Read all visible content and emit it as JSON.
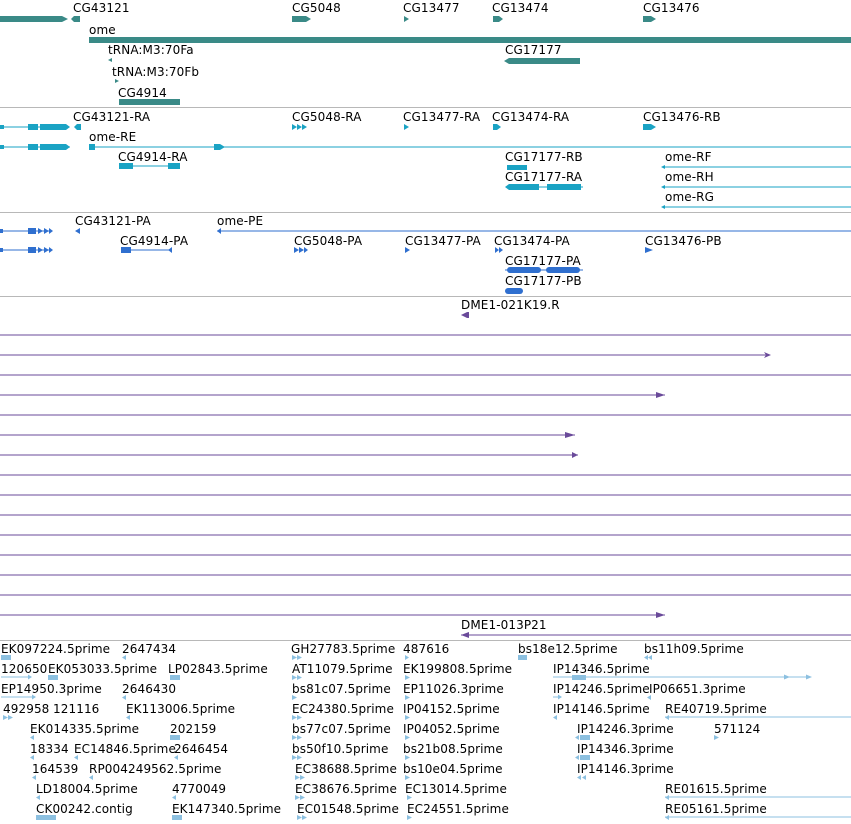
{
  "colors": {
    "gene": "#3a8a87",
    "transcript": "#1aa3c4",
    "protein": "#2f6fcf",
    "clone": "#6a4a9a",
    "est": "#8cc0e0"
  },
  "tracks": {
    "genes": {
      "labels": [
        "CG43121",
        "CG5048",
        "CG13477",
        "CG13474",
        "CG13476",
        "ome",
        "tRNA:M3:70Fa",
        "CG17177",
        "tRNA:M3:70Fb",
        "CG4914"
      ]
    },
    "transcripts": {
      "labels": [
        "CG43121-RA",
        "CG5048-RA",
        "CG13477-RA",
        "CG13474-RA",
        "CG13476-RB",
        "ome-RE",
        "CG4914-RA",
        "CG17177-RB",
        "ome-RF",
        "CG17177-RA",
        "ome-RH",
        "ome-RG"
      ]
    },
    "proteins": {
      "labels": [
        "CG43121-PA",
        "ome-PE",
        "CG4914-PA",
        "CG5048-PA",
        "CG13477-PA",
        "CG13474-PA",
        "CG13476-PB",
        "CG17177-PA",
        "CG17177-PB"
      ]
    },
    "clones": {
      "labels": [
        "DME1-021K19.R",
        "DME1-013P21"
      ]
    },
    "ests": {
      "labels": [
        "EK097224.5prime",
        "2647434",
        "GH27783.5prime",
        "487616",
        "bs18e12.5prime",
        "bs11h09.5prime",
        "120650",
        "EK053033.5prime",
        "LP02843.5prime",
        "AT11079.5prime",
        "EK199808.5prime",
        "IP14346.5prime",
        "EP14950.3prime",
        "2646430",
        "bs81c07.5prime",
        "EP11026.3prime",
        "IP14246.5prime",
        "IP06651.3prime",
        "492958",
        "121116",
        "EK113006.5prime",
        "EC24380.5prime",
        "IP04152.5prime",
        "IP14146.5prime",
        "RE40719.5prime",
        "EK014335.5prime",
        "202159",
        "bs77c07.5prime",
        "IP04052.5prime",
        "IP14246.3prime",
        "571124",
        "18334",
        "EC14846.5prime",
        "2646454",
        "bs50f10.5prime",
        "bs21b08.5prime",
        "IP14346.3prime",
        "164539",
        "RP004249562.5prime",
        "EC38688.5prime",
        "bs10e04.5prime",
        "IP14146.3prime",
        "LD18004.5prime",
        "4770049",
        "EC38676.5prime",
        "EC13014.5prime",
        "RE01615.5prime",
        "CK00242.contig",
        "EK147340.5prime",
        "EC01548.5prime",
        "EC24551.5prime",
        "RE05161.5prime"
      ]
    }
  }
}
